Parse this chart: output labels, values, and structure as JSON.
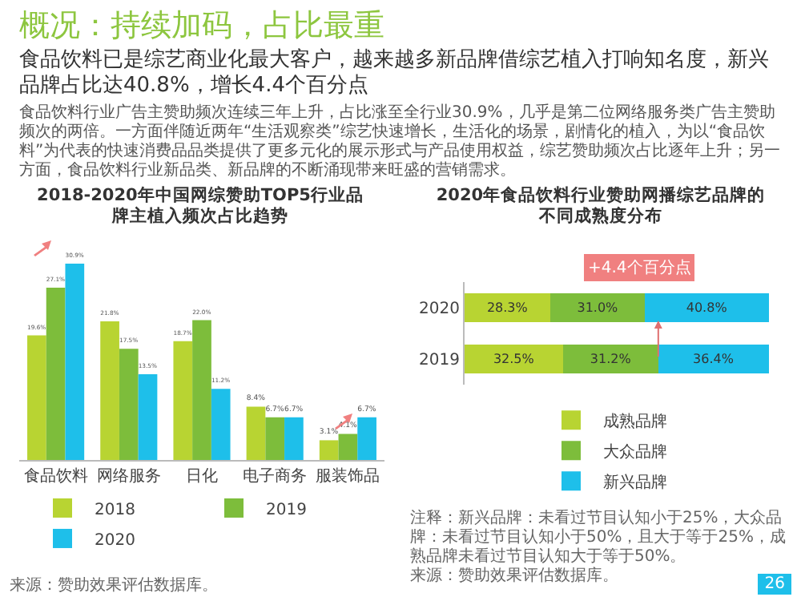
{
  "chart_data": [
    {
      "type": "other",
      "title": "概况：持续加码，占比最重",
      "subtitle": "食品饮料已是综艺商业化最大客户，越来越多新品牌借综艺植入打响知名度，新兴品牌占比达40.8%，增长4.4个百分点",
      "annotations": [
        "食品饮料行业广告主赞助频次连续三年上升，占比涨至全行业30.9%，几乎是第二位网络服务类广告主赞助频次的两倍。一方面伴随近两年“生活观察类”综艺快速增长，生活化的场景，剧情化的植入，为以“食品饮料”为代表的快速消费品品类提供了更多元化的展示形式与产品使用权益，综艺赞助频次占比逐年上升；另一方面，食品饮料行业新品类、新品牌的不断涌现带来旺盛的营销需求。",
        "26"
      ]
    },
    {
      "type": "bar",
      "title": "2018-2020年中国网综赞助TOP5行业品牌主植入频次占比趋势",
      "categories": [
        "食品饮料",
        "网络服务",
        "日化",
        "电子商务",
        "服装饰品"
      ],
      "series": [
        {
          "name": "2018",
          "color": "#b8d432",
          "values": [
            19.6,
            21.8,
            18.7,
            8.4,
            3.1
          ],
          "value_labels": [
            "19.6%",
            "21.8%",
            "18.7%",
            "8.4%",
            "3.1%"
          ]
        },
        {
          "name": "2019",
          "color": "#7dbd3b",
          "values": [
            27.1,
            17.5,
            22.0,
            6.7,
            4.1
          ],
          "value_labels": [
            "27.1%",
            "17.5%",
            "22.0%",
            "6.7%",
            "4.1%"
          ]
        },
        {
          "name": "2020",
          "color": "#1ebfea",
          "values": [
            30.9,
            13.5,
            11.2,
            6.7,
            6.7
          ],
          "value_labels": [
            "30.9%",
            "13.5%",
            "11.2%",
            "6.7%",
            "6.7%"
          ]
        }
      ],
      "legend": "bottom",
      "annotations": [
        "来源：赞助效果评估数据库。"
      ]
    },
    {
      "type": "bar",
      "orientation": "horizontal",
      "stacked": true,
      "title": "2020年食品饮料行业赞助网播综艺品牌的不同成熟度分布",
      "categories": [
        "2020",
        "2019"
      ],
      "series": [
        {
          "name": "成熟品牌",
          "color": "#b8d432",
          "values": [
            28.3,
            32.5
          ],
          "value_labels": [
            "28.3%",
            "32.5%"
          ]
        },
        {
          "name": "大众品牌",
          "color": "#7dbd3b",
          "values": [
            31.0,
            31.2
          ],
          "value_labels": [
            "31.0%",
            "31.2%"
          ]
        },
        {
          "name": "新兴品牌",
          "color": "#1ebfea",
          "values": [
            40.8,
            36.4
          ],
          "value_labels": [
            "40.8%",
            "36.4%"
          ]
        }
      ],
      "legend": "bottom",
      "annotations": [
        "+4.4个百分点",
        "注释：新兴品牌：未看过节目认知小于25%，大众品牌：未看过节目认知小于50%，且大于等于25%，成熟品牌未看过节目认知大于等于50%。",
        "来源：赞助效果评估数据库。"
      ]
    }
  ]
}
